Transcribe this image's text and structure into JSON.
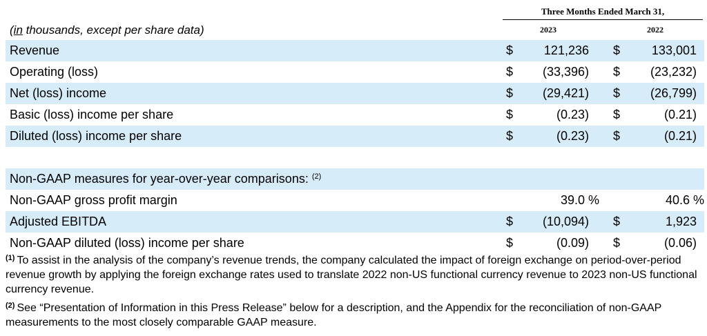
{
  "header": {
    "period": "Three Months Ended March 31,",
    "caption_prefix": "in",
    "caption_rest": " thousands, except per share data)",
    "caption_open": "(",
    "year1": "2023",
    "year2": "2022"
  },
  "rows": [
    {
      "label": "Revenue",
      "cur1": "$",
      "v1": "121,236",
      "cur2": "$",
      "v2": "133,001"
    },
    {
      "label": "Operating (loss)",
      "cur1": "$",
      "v1": "(33,396)",
      "cur2": "$",
      "v2": "(23,232)"
    },
    {
      "label": "Net (loss) income",
      "cur1": "$",
      "v1": "(29,421)",
      "cur2": "$",
      "v2": "(26,799)"
    },
    {
      "label": "Basic (loss) income per share",
      "cur1": "$",
      "v1": "(0.23)",
      "cur2": "$",
      "v2": "(0.21)"
    },
    {
      "label": "Diluted (loss) income per share",
      "cur1": "$",
      "v1": "(0.23)",
      "cur2": "$",
      "v2": "(0.21)"
    }
  ],
  "nongaap": {
    "heading": "Non-GAAP measures for year-over-year comparisons:",
    "heading_note": "(2)",
    "rows": [
      {
        "label": "Non-GAAP gross profit margin",
        "cur1": "",
        "v1": "39.0 %",
        "cur2": "",
        "v2": "40.6 %"
      },
      {
        "label": "Adjusted EBITDA",
        "cur1": "$",
        "v1": "(10,094)",
        "cur2": "$",
        "v2": "1,923"
      },
      {
        "label": "Non-GAAP diluted (loss) income per share",
        "cur1": "$",
        "v1": "(0.09)",
        "cur2": "$",
        "v2": "(0.06)"
      }
    ]
  },
  "footnotes": [
    {
      "marker": "(1)",
      "text": "To assist in the analysis of the company’s revenue trends, the company calculated the impact of foreign exchange on period-over-period revenue growth by applying the foreign exchange rates used to translate 2022 non-US functional currency revenue to 2023 non-US functional currency revenue."
    },
    {
      "marker": "(2)",
      "text": "See “Presentation of Information in this Press Release” below for a description, and the Appendix for the reconciliation of non-GAAP measurements to the most closely comparable GAAP measure."
    }
  ]
}
